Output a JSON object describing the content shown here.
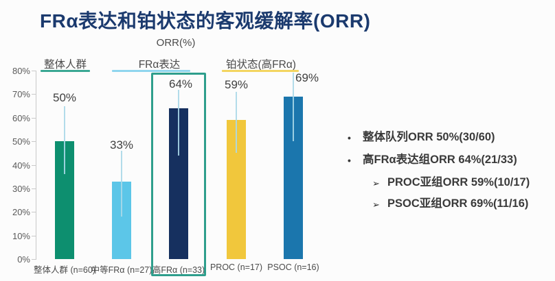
{
  "title": "FRα表达和铂状态的客观缓解率(ORR)",
  "chart_data": {
    "type": "bar",
    "title": "ORR(%)",
    "categories": [
      "整体人群 (n=60)",
      "中等FRα (n=27)",
      "高FRα (n=33)",
      "PROC (n=17)",
      "PSOC (n=16)"
    ],
    "values": [
      50,
      33,
      64,
      59,
      69
    ],
    "value_labels": [
      "50%",
      "33%",
      "64%",
      "59%",
      "69%"
    ],
    "error_low": [
      36,
      18,
      44,
      45,
      50
    ],
    "error_high": [
      65,
      46,
      72,
      71,
      79
    ],
    "bar_colors": [
      "#0d8f6f",
      "#5cc6e8",
      "#16305f",
      "#f1c73c",
      "#1b76ad"
    ],
    "ylim": [
      0,
      80
    ],
    "ytick_step": 10,
    "ytick_suffix": "%",
    "grid": false,
    "legend": null,
    "groups": [
      {
        "label": "整体人群",
        "underline_color": "#3aa793"
      },
      {
        "label": "FRα表达",
        "underline_color": "#8fd6ee"
      },
      {
        "label": "铂状态(高FRα)",
        "underline_color": "#f3d560"
      }
    ],
    "highlight_index": 2,
    "highlight_color": "#2e9e8c",
    "error_bar_color": "#aad8e8"
  },
  "notes": {
    "items": [
      {
        "level": 1,
        "marker": "•",
        "text": "整体队列ORR 50%(30/60)"
      },
      {
        "level": 1,
        "marker": "•",
        "text": "高FRα表达组ORR 64%(21/33)"
      },
      {
        "level": 2,
        "marker": "➢",
        "text": "PROC亚组ORR 59%(10/17)"
      },
      {
        "level": 2,
        "marker": "➢",
        "text": "PSOC亚组ORR 69%(11/16)"
      }
    ]
  },
  "colors": {
    "title": "#1b3a6e",
    "background": "#fcfcfc",
    "axis": "#c9c9c9",
    "text": "#3a3a3a"
  }
}
